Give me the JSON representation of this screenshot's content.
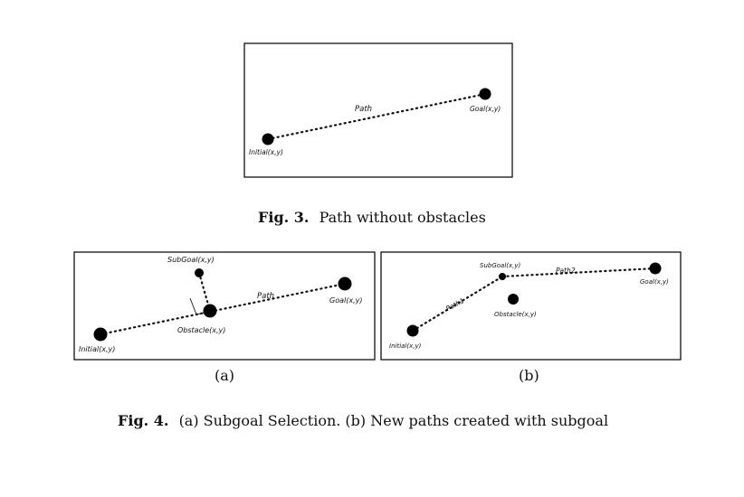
{
  "fig3": {
    "label_path": "Path",
    "label_goal": "Goal(x,y)",
    "label_initial": "Initial(x,y)",
    "caption_num": "Fig. 3.",
    "caption_text": "Path without obstacles"
  },
  "fig4a": {
    "label_subgoal": "SubGoal(x,y)",
    "label_path": "Path",
    "label_goal": "Goal(x,y)",
    "label_obstacle": "Obstacle(x,y)",
    "label_initial": "Initial(x,y)",
    "sub_caption": "(a)"
  },
  "fig4b": {
    "label_subgoal": "SubGoal(x,y)",
    "label_path2": "Path2",
    "label_goal": "Goal(x,y)",
    "label_path1": "Path1",
    "label_obstacle": "Obstacle(x,y)",
    "label_initial": "Initial(x,y)",
    "sub_caption": "(b)"
  },
  "fig4": {
    "caption_num": "Fig. 4.",
    "caption_text": "(a) Subgoal Selection. (b) New paths created with subgoal"
  }
}
